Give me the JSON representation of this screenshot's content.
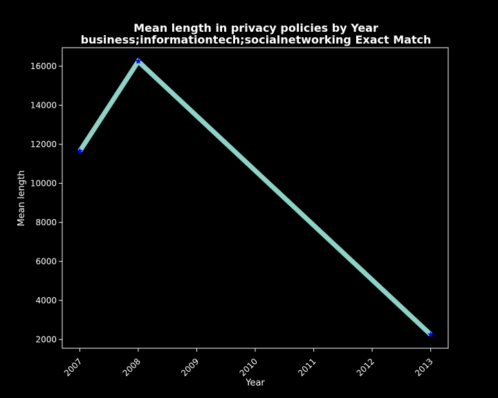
{
  "colors": {
    "background": "#000000",
    "axes": "#ffffff",
    "line": "#8dd3c7",
    "marker": "#0000ff"
  },
  "chart_data": {
    "type": "line",
    "title": "Mean length in privacy policies by Year",
    "subtitle": "business;informationtech;socialnetworking Exact Match",
    "xlabel": "Year",
    "ylabel": "Mean length",
    "x": [
      2007,
      2008,
      2013
    ],
    "xticks": [
      "2007",
      "2008",
      "2009",
      "2010",
      "2011",
      "2012",
      "2013"
    ],
    "yticks": [
      "2000",
      "4000",
      "6000",
      "8000",
      "10000",
      "12000",
      "14000",
      "16000"
    ],
    "xlim": [
      2006.7,
      2013.3
    ],
    "ylim": [
      1550,
      16950
    ],
    "grid": false,
    "marker": "star",
    "series": [
      {
        "values": [
          11650,
          16250,
          2250
        ]
      }
    ]
  }
}
